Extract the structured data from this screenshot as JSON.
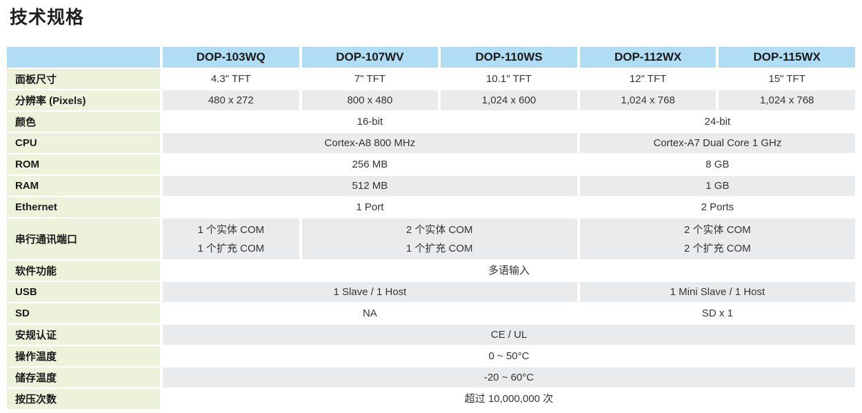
{
  "page": {
    "title": "技术规格"
  },
  "colors": {
    "header_bg": "#b0ddf3",
    "label_bg": "#edf2db",
    "stripe_bg": "#e9ebed",
    "title_text": "#1f1f1f",
    "cell_text": "#333333"
  },
  "table": {
    "models": [
      "DOP-103WQ",
      "DOP-107WV",
      "DOP-110WS",
      "DOP-112WX",
      "DOP-115WX"
    ],
    "rows": [
      {
        "label": "面板尺寸",
        "shade": "white",
        "cells": [
          {
            "text": "4.3\" TFT",
            "span": 1
          },
          {
            "text": "7\" TFT",
            "span": 1
          },
          {
            "text": "10.1\" TFT",
            "span": 1
          },
          {
            "text": "12\" TFT",
            "span": 1
          },
          {
            "text": "15\" TFT",
            "span": 1
          }
        ]
      },
      {
        "label": "分辨率 (Pixels)",
        "shade": "gray",
        "cells": [
          {
            "text": "480 x 272",
            "span": 1
          },
          {
            "text": "800 x 480",
            "span": 1
          },
          {
            "text": "1,024 x 600",
            "span": 1
          },
          {
            "text": "1,024 x 768",
            "span": 1
          },
          {
            "text": "1,024 x 768",
            "span": 1
          }
        ]
      },
      {
        "label": "颜色",
        "shade": "white",
        "cells": [
          {
            "text": "16-bit",
            "span": 3
          },
          {
            "text": "24-bit",
            "span": 2
          }
        ]
      },
      {
        "label": "CPU",
        "shade": "gray",
        "cells": [
          {
            "text": "Cortex-A8 800 MHz",
            "span": 3
          },
          {
            "text": "Cortex-A7 Dual Core 1 GHz",
            "span": 2
          }
        ]
      },
      {
        "label": "ROM",
        "shade": "white",
        "cells": [
          {
            "text": "256 MB",
            "span": 3
          },
          {
            "text": "8 GB",
            "span": 2
          }
        ]
      },
      {
        "label": "RAM",
        "shade": "gray",
        "cells": [
          {
            "text": "512 MB",
            "span": 3
          },
          {
            "text": "1 GB",
            "span": 2
          }
        ]
      },
      {
        "label": "Ethernet",
        "shade": "white",
        "cells": [
          {
            "text": "1 Port",
            "span": 3
          },
          {
            "text": "2 Ports",
            "span": 2
          }
        ]
      },
      {
        "label": "串行通讯端口",
        "shade": "gray",
        "tall": true,
        "cells": [
          {
            "text": "1 个实体 COM\n1 个扩充 COM",
            "span": 1
          },
          {
            "text": "2 个实体 COM\n1 个扩充 COM",
            "span": 2
          },
          {
            "text": "2 个实体 COM\n2 个扩充 COM",
            "span": 2
          }
        ]
      },
      {
        "label": "软件功能",
        "shade": "white",
        "cells": [
          {
            "text": "多语输入",
            "span": 5
          }
        ]
      },
      {
        "label": "USB",
        "shade": "gray",
        "cells": [
          {
            "text": "1 Slave / 1 Host",
            "span": 3
          },
          {
            "text": "1 Mini Slave / 1 Host",
            "span": 2
          }
        ]
      },
      {
        "label": "SD",
        "shade": "white",
        "cells": [
          {
            "text": "NA",
            "span": 3
          },
          {
            "text": "SD x 1",
            "span": 2
          }
        ]
      },
      {
        "label": "安规认证",
        "shade": "gray",
        "cells": [
          {
            "text": "CE / UL",
            "span": 5
          }
        ]
      },
      {
        "label": "操作温度",
        "shade": "white",
        "cells": [
          {
            "text": "0 ~ 50°C",
            "span": 5
          }
        ]
      },
      {
        "label": "储存温度",
        "shade": "gray",
        "cells": [
          {
            "text": "-20 ~ 60°C",
            "span": 5
          }
        ]
      },
      {
        "label": "按压次数",
        "shade": "white",
        "cells": [
          {
            "text": "超过 10,000,000 次",
            "span": 5
          }
        ]
      }
    ]
  }
}
